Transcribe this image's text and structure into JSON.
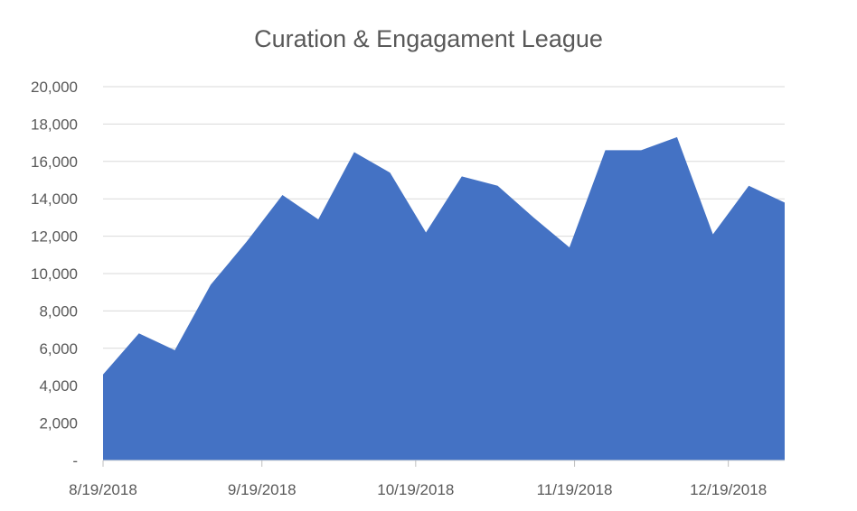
{
  "chart_data": {
    "type": "area",
    "title": "Curation & Engagament League",
    "xlabel": "",
    "ylabel": "",
    "ylim": [
      0,
      20000
    ],
    "yticks": [
      0,
      2000,
      4000,
      6000,
      8000,
      10000,
      12000,
      14000,
      16000,
      18000,
      20000
    ],
    "ytick_labels": [
      "-",
      "2,000",
      "4,000",
      "6,000",
      "8,000",
      "10,000",
      "12,000",
      "14,000",
      "16,000",
      "18,000",
      "20,000"
    ],
    "xlim": [
      "2018-08-19",
      "2018-12-30"
    ],
    "xticks": [
      "2018-08-19",
      "2018-09-19",
      "2018-10-19",
      "2018-11-19",
      "2018-12-19"
    ],
    "xtick_labels": [
      "8/19/2018",
      "9/19/2018",
      "10/19/2018",
      "11/19/2018",
      "12/19/2018"
    ],
    "grid": "horizontal",
    "legend": "none",
    "fill_color": "#4472c4",
    "series": [
      {
        "x": [
          "2018-08-19",
          "2018-08-26",
          "2018-09-02",
          "2018-09-09",
          "2018-09-16",
          "2018-09-23",
          "2018-09-30",
          "2018-10-07",
          "2018-10-14",
          "2018-10-21",
          "2018-10-28",
          "2018-11-04",
          "2018-11-11",
          "2018-11-18",
          "2018-11-25",
          "2018-12-02",
          "2018-12-09",
          "2018-12-16",
          "2018-12-23",
          "2018-12-30"
        ],
        "values": [
          4600,
          6800,
          5900,
          9400,
          11700,
          14200,
          12900,
          16500,
          15400,
          12200,
          15200,
          14700,
          13000,
          11400,
          16600,
          16600,
          17300,
          12100,
          14700,
          13800
        ]
      }
    ]
  }
}
